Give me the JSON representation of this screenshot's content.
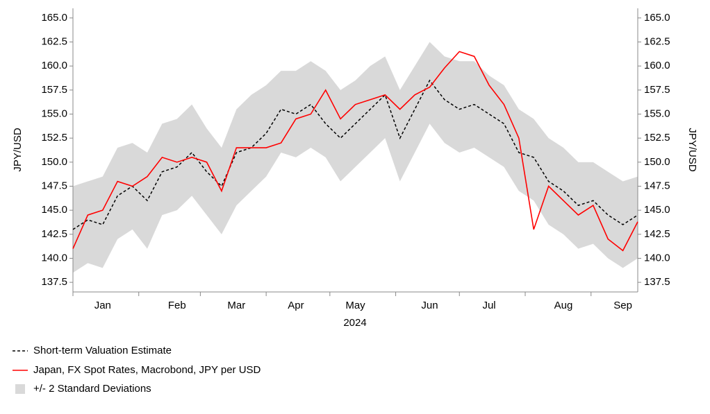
{
  "chart_data": {
    "type": "line",
    "ylabel": "JPY/USD",
    "y2label": "JPY/USD",
    "xlabel": "2024",
    "categories": [
      null,
      null,
      "Jan",
      null,
      null,
      null,
      null,
      "Feb",
      null,
      null,
      null,
      "Mar",
      null,
      null,
      null,
      "Apr",
      null,
      null,
      null,
      "May",
      null,
      null,
      null,
      null,
      "Jun",
      null,
      null,
      null,
      "Jul",
      null,
      null,
      null,
      null,
      "Aug",
      null,
      null,
      null,
      "Sep",
      null
    ],
    "series": [
      {
        "name": "Short-term Valuation Estimate",
        "color": "#000000",
        "dash": true,
        "values": [
          143.0,
          144.0,
          143.5,
          146.5,
          147.5,
          146.0,
          149.0,
          149.5,
          151.0,
          149.0,
          147.5,
          151.0,
          151.5,
          153.0,
          155.5,
          155.0,
          156.0,
          154.0,
          152.5,
          154.0,
          155.5,
          157.0,
          152.5,
          155.5,
          158.5,
          156.5,
          155.5,
          156.0,
          155.0,
          154.0,
          151.0,
          150.5,
          148.0,
          147.0,
          145.5,
          146.0,
          144.5,
          143.5,
          144.5
        ]
      },
      {
        "name": "Japan, FX Spot Rates, Macrobond, JPY per USD",
        "color": "#ff0000",
        "dash": false,
        "values": [
          141.0,
          144.5,
          145.0,
          148.0,
          147.5,
          148.5,
          150.5,
          150.0,
          150.5,
          150.0,
          147.0,
          151.5,
          151.5,
          151.5,
          152.0,
          154.5,
          155.0,
          157.5,
          154.5,
          156.0,
          156.5,
          157.0,
          155.5,
          157.0,
          157.8,
          159.8,
          161.5,
          161.0,
          158.0,
          156.0,
          152.5,
          143.0,
          147.5,
          146.0,
          144.5,
          145.5,
          142.0,
          140.8,
          143.8
        ]
      }
    ],
    "band": {
      "name": "+/- 2 Standard Deviations",
      "color": "#d9d9d9",
      "upper": [
        147.5,
        148.0,
        148.5,
        151.5,
        152.0,
        151.0,
        154.0,
        154.5,
        156.0,
        153.5,
        151.5,
        155.5,
        157.0,
        158.0,
        159.5,
        159.5,
        160.5,
        159.5,
        157.5,
        158.5,
        160.0,
        161.0,
        157.5,
        160.0,
        162.5,
        161.0,
        160.5,
        160.5,
        159.0,
        158.0,
        155.5,
        154.5,
        152.5,
        151.5,
        150.0,
        150.0,
        149.0,
        148.0,
        148.5
      ],
      "lower": [
        138.5,
        139.5,
        139.0,
        142.0,
        143.0,
        141.0,
        144.5,
        145.0,
        146.5,
        144.5,
        142.5,
        145.5,
        147.0,
        148.5,
        151.0,
        150.5,
        151.5,
        150.5,
        148.0,
        149.5,
        151.0,
        152.5,
        148.0,
        151.0,
        154.0,
        152.0,
        151.0,
        151.5,
        150.5,
        149.5,
        147.0,
        146.0,
        143.5,
        142.5,
        141.0,
        141.5,
        140.0,
        139.0,
        140.0
      ]
    },
    "ylim": [
      136.5,
      166
    ],
    "yticks": [
      137.5,
      {
        "value": 140,
        "label": "140.0"
      },
      142.5,
      {
        "value": 145,
        "label": "145.0"
      },
      147.5,
      {
        "value": 150,
        "label": "150.0"
      },
      152.5,
      {
        "value": 155,
        "label": "155.0"
      },
      157.5,
      {
        "value": 160,
        "label": "160.0"
      },
      162.5,
      {
        "value": 165,
        "label": "165.0"
      }
    ]
  }
}
